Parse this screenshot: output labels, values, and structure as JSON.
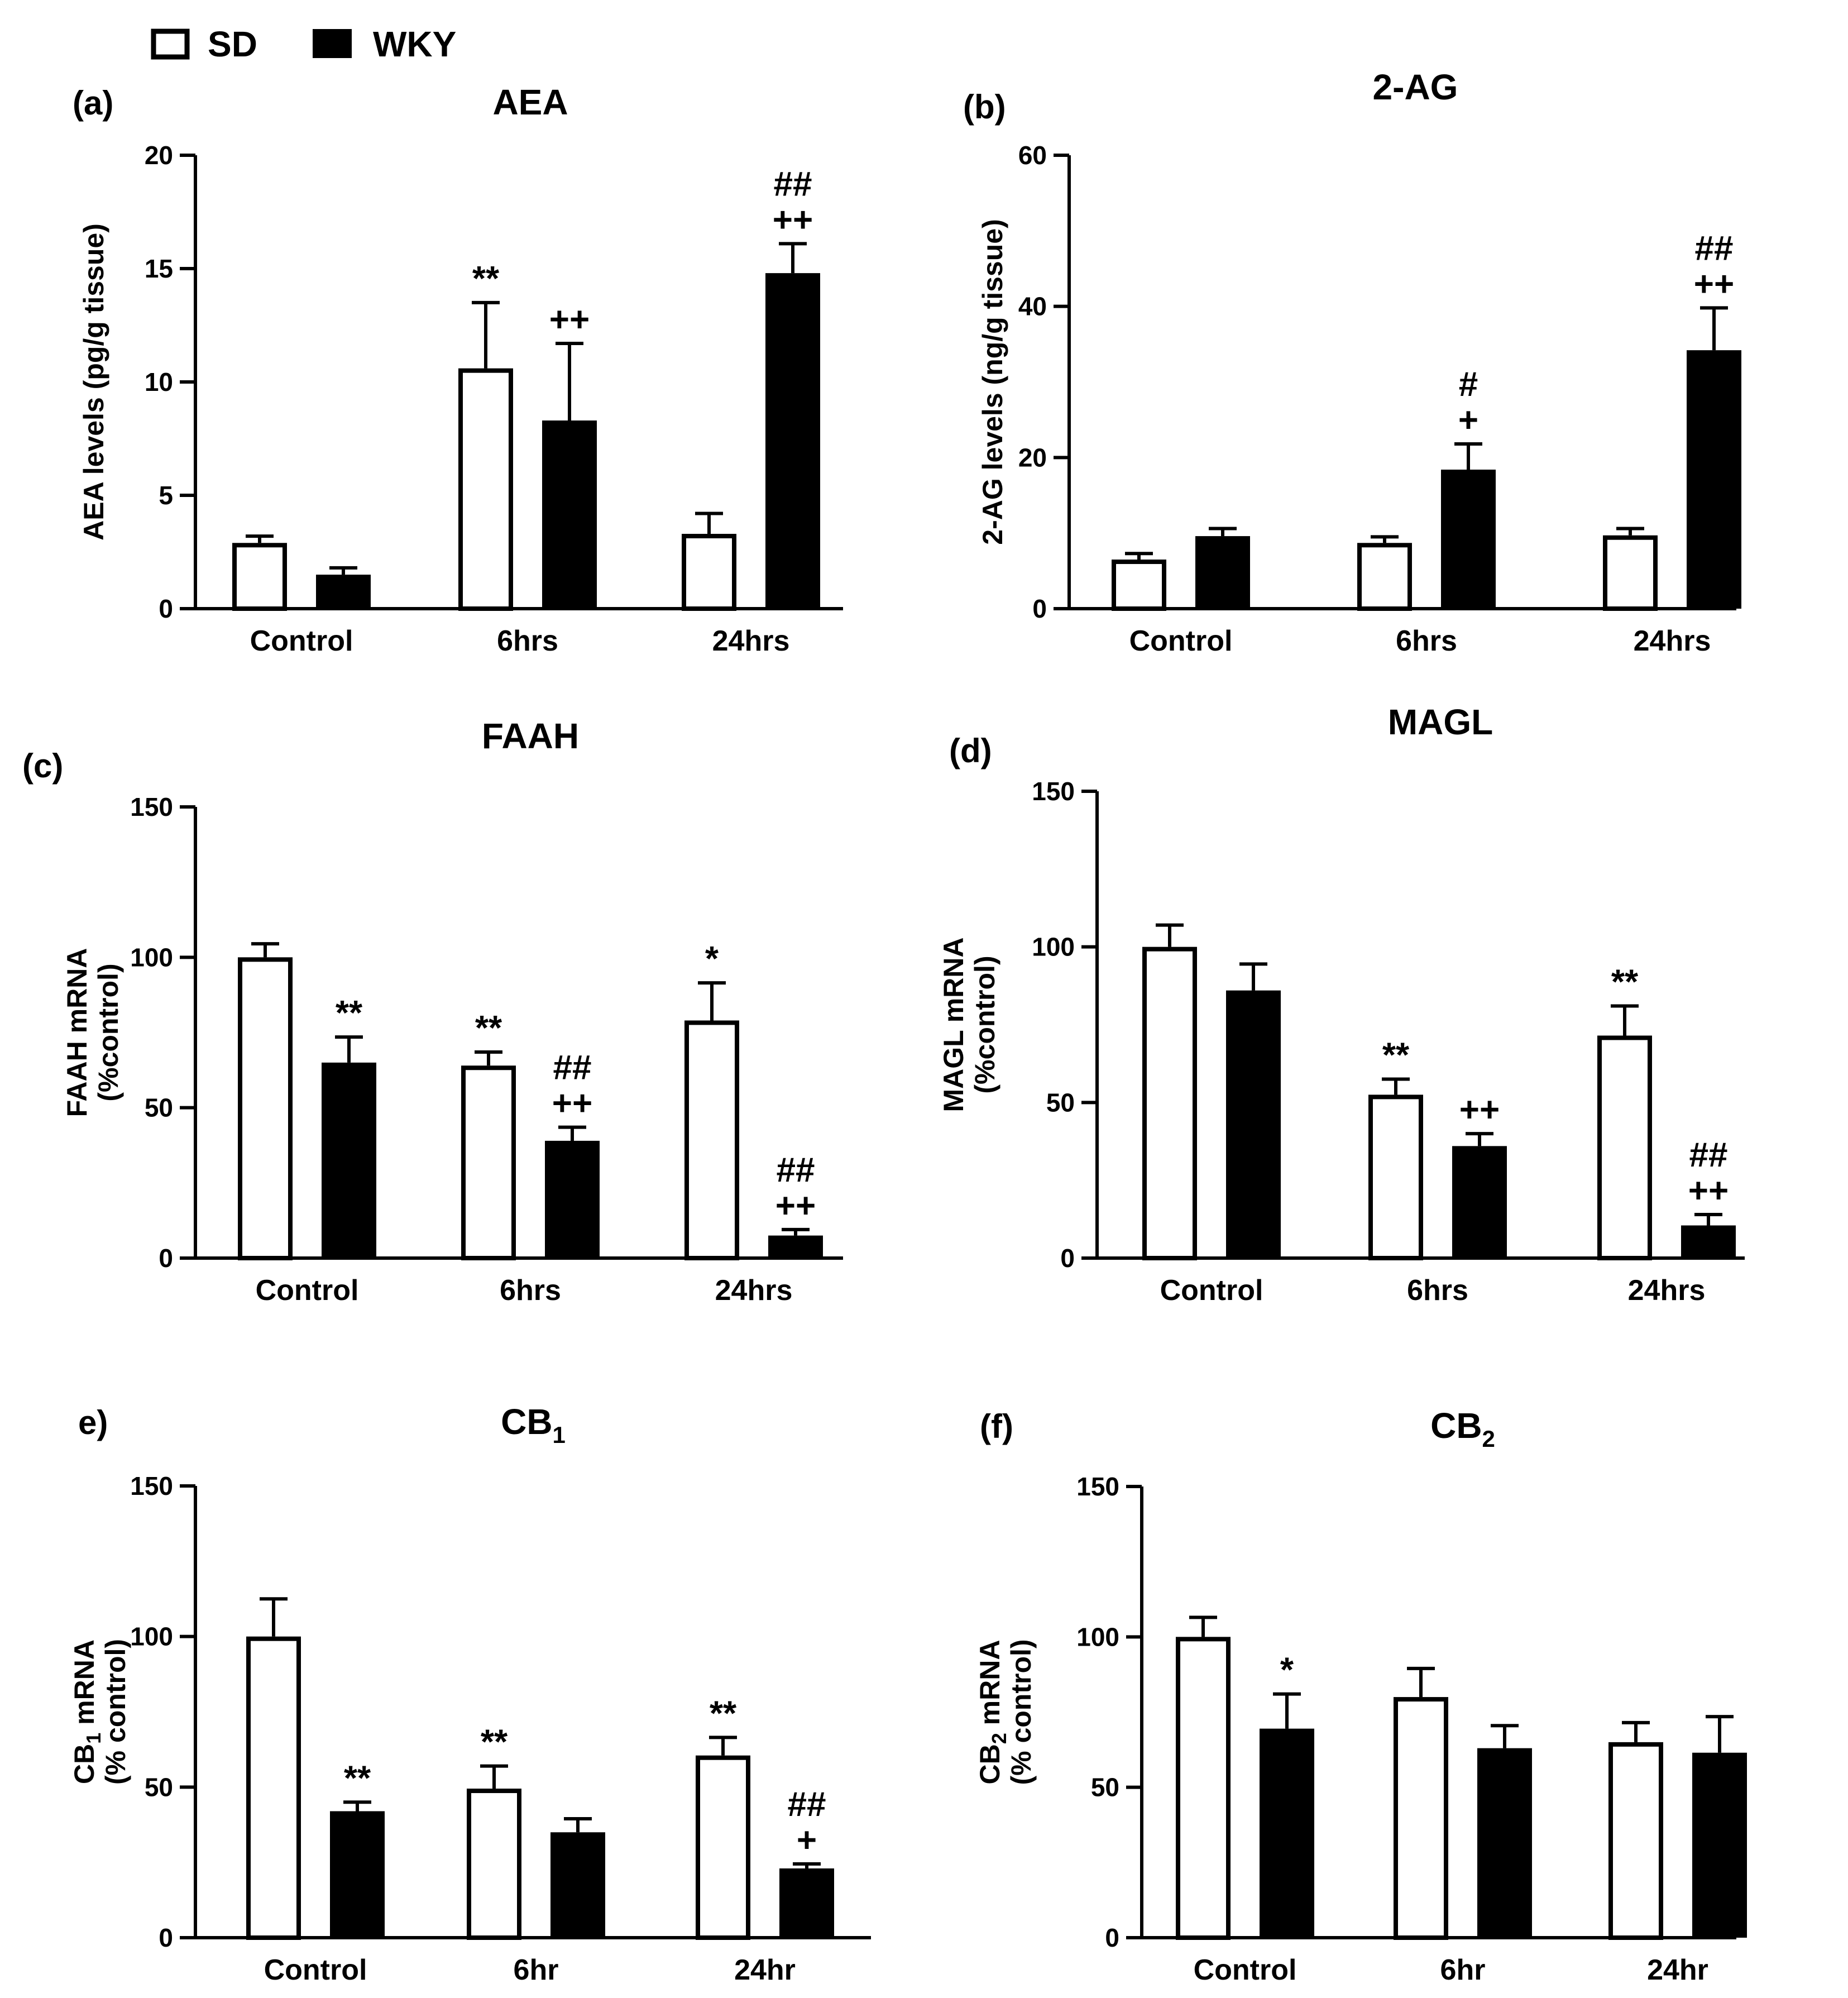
{
  "legend": [
    {
      "name": "SD",
      "fill": "#ffffff"
    },
    {
      "name": "WKY",
      "fill": "#000000"
    }
  ],
  "chart_data": [
    {
      "id": "a",
      "type": "bar",
      "panel_label": "(a)",
      "title": "AEA",
      "ylabel_lines": [
        "AEA levels (pg/g tissue)"
      ],
      "ylim": [
        0,
        20
      ],
      "yticks": [
        0,
        5,
        10,
        15,
        20
      ],
      "categories": [
        "Control",
        "6hrs",
        "24hrs"
      ],
      "series": [
        {
          "name": "SD",
          "values": [
            2.9,
            10.6,
            3.3
          ],
          "errors": [
            0.3,
            2.9,
            0.9
          ],
          "annotations": [
            [],
            [
              "**"
            ],
            []
          ]
        },
        {
          "name": "WKY",
          "values": [
            1.5,
            8.3,
            14.8
          ],
          "errors": [
            0.3,
            3.4,
            1.3
          ],
          "annotations": [
            [],
            [
              "++"
            ],
            [
              "##",
              "++"
            ]
          ]
        }
      ]
    },
    {
      "id": "b",
      "type": "bar",
      "panel_label": "(b)",
      "title": "2-AG",
      "ylabel_lines": [
        "2-AG levels (ng/g tissue)"
      ],
      "ylim": [
        0,
        60
      ],
      "yticks": [
        0,
        20,
        40,
        60
      ],
      "categories": [
        "Control",
        "6hrs",
        "24hrs"
      ],
      "series": [
        {
          "name": "SD",
          "values": [
            6.5,
            8.7,
            9.7
          ],
          "errors": [
            0.8,
            0.8,
            0.9
          ],
          "annotations": [
            [],
            [],
            []
          ]
        },
        {
          "name": "WKY",
          "values": [
            9.6,
            18.4,
            34.2
          ],
          "errors": [
            1.0,
            3.4,
            5.6
          ],
          "annotations": [
            [],
            [
              "#",
              "+"
            ],
            [
              "##",
              "++"
            ]
          ]
        }
      ]
    },
    {
      "id": "c",
      "type": "bar",
      "panel_label": "(c)",
      "title": "FAAH",
      "ylabel_lines": [
        "FAAH mRNA",
        "(%control)"
      ],
      "ylim": [
        0,
        150
      ],
      "yticks": [
        0,
        50,
        100,
        150
      ],
      "categories": [
        "Control",
        "6hrs",
        "24hrs"
      ],
      "series": [
        {
          "name": "SD",
          "values": [
            100,
            64,
            79
          ],
          "errors": [
            4.5,
            4.5,
            12.5
          ],
          "annotations": [
            [],
            [
              "**"
            ],
            [
              "*"
            ]
          ]
        },
        {
          "name": "WKY",
          "values": [
            65,
            39,
            7.5
          ],
          "errors": [
            8.5,
            4.5,
            2.0
          ],
          "annotations": [
            [
              "**"
            ],
            [
              "##",
              "++"
            ],
            [
              "##",
              "++"
            ]
          ]
        }
      ]
    },
    {
      "id": "d",
      "type": "bar",
      "panel_label": "(d)",
      "title": "MAGL",
      "ylabel_lines": [
        "MAGL mRNA",
        "(%control)"
      ],
      "ylim": [
        0,
        150
      ],
      "yticks": [
        0,
        50,
        100,
        150
      ],
      "categories": [
        "Control",
        "6hrs",
        "24hrs"
      ],
      "series": [
        {
          "name": "SD",
          "values": [
            100,
            52.5,
            71.5
          ],
          "errors": [
            7.0,
            5.0,
            9.5
          ],
          "annotations": [
            [],
            [
              "**"
            ],
            [
              "**"
            ]
          ]
        },
        {
          "name": "WKY",
          "values": [
            86,
            36,
            10.5
          ],
          "errors": [
            8.5,
            4.0,
            3.5
          ],
          "annotations": [
            [],
            [
              "++"
            ],
            [
              "##",
              "++"
            ]
          ]
        }
      ]
    },
    {
      "id": "e",
      "type": "bar",
      "panel_label": "e)",
      "title": "CB",
      "title_sub": "1",
      "ylabel_lines": [
        "CB1 mRNA",
        "(% control)"
      ],
      "ylabel_first": [
        "CB",
        "1",
        " mRNA"
      ],
      "ylim": [
        0,
        150
      ],
      "yticks": [
        0,
        50,
        100,
        150
      ],
      "categories": [
        "Control",
        "6hr",
        "24hr"
      ],
      "series": [
        {
          "name": "SD",
          "values": [
            100,
            49.5,
            60.5
          ],
          "errors": [
            12.5,
            7.5,
            6.0
          ],
          "annotations": [
            [],
            [
              "**"
            ],
            [
              "**"
            ]
          ]
        },
        {
          "name": "WKY",
          "values": [
            42,
            35,
            23
          ],
          "errors": [
            3.0,
            4.5,
            1.5
          ],
          "annotations": [
            [
              "**"
            ],
            [],
            [
              "##",
              "+"
            ]
          ]
        }
      ]
    },
    {
      "id": "f",
      "type": "bar",
      "panel_label": "(f)",
      "title": "CB",
      "title_sub": "2",
      "ylabel_lines": [
        "CB2 mRNA",
        "(% control)"
      ],
      "ylabel_first": [
        "CB",
        "2",
        " mRNA"
      ],
      "ylim": [
        0,
        150
      ],
      "yticks": [
        0,
        50,
        100,
        150
      ],
      "categories": [
        "Control",
        "6hr",
        "24hr"
      ],
      "series": [
        {
          "name": "SD",
          "values": [
            100,
            80,
            65
          ],
          "errors": [
            6.5,
            9.5,
            6.5
          ],
          "annotations": [
            [],
            [],
            []
          ]
        },
        {
          "name": "WKY",
          "values": [
            69.5,
            63,
            61.5
          ],
          "errors": [
            11.5,
            7.5,
            12.0
          ],
          "annotations": [
            [
              "*"
            ],
            [],
            []
          ]
        }
      ]
    }
  ]
}
